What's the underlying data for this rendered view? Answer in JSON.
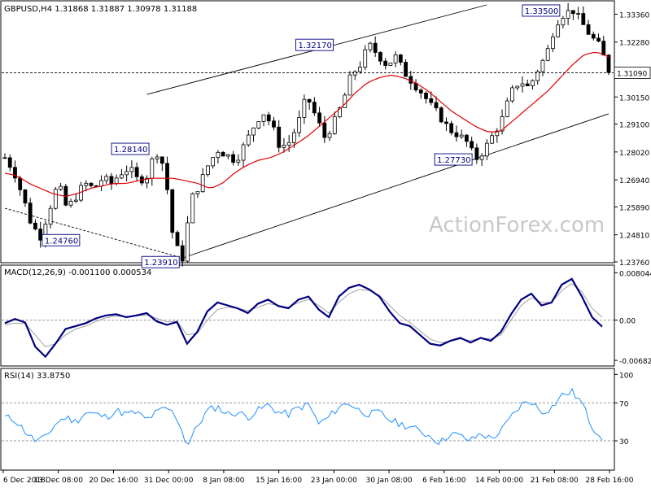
{
  "chart_data": [
    {
      "type": "candlestick",
      "title": "GBPUSD,H4  1.31868 1.31887 1.30978 1.31188",
      "timeframe": "H4",
      "symbol": "GBPUSD",
      "last_price_label": "1.31090",
      "ylim": [
        1.2376,
        1.3372
      ],
      "y_ticks": [
        "1.33360",
        "1.32280",
        "1.31090",
        "1.30150",
        "1.29100",
        "1.28020",
        "1.26940",
        "1.25890",
        "1.24810",
        "1.23760"
      ],
      "x_ticks": [
        "6 Dec 2018",
        "13 Dec 08:00",
        "20 Dec 16:00",
        "31 Dec 00:00",
        "8 Jan 08:00",
        "15 Jan 16:00",
        "23 Jan 00:00",
        "30 Jan 08:00",
        "6 Feb 16:00",
        "14 Feb 00:00",
        "21 Feb 08:00",
        "28 Feb 16:00"
      ],
      "annotations": [
        {
          "text": "1.24760",
          "value": 1.2476
        },
        {
          "text": "1.28140",
          "value": 1.2814
        },
        {
          "text": "1.23910",
          "value": 1.2391
        },
        {
          "text": "1.32170",
          "value": 1.3217
        },
        {
          "text": "1.27730",
          "value": 1.2773
        },
        {
          "text": "1.33500",
          "value": 1.335
        }
      ],
      "series": [
        {
          "name": "GBPUSD",
          "price_path": [
            1.278,
            1.273,
            1.263,
            1.252,
            1.2476,
            1.258,
            1.268,
            1.258,
            1.263,
            1.268,
            1.266,
            1.27,
            1.268,
            1.272,
            1.274,
            1.269,
            1.271,
            1.281,
            1.274,
            1.245,
            1.2391,
            1.262,
            1.268,
            1.276,
            1.281,
            1.279,
            1.277,
            1.283,
            1.29,
            1.296,
            1.291,
            1.282,
            1.284,
            1.291,
            1.302,
            1.294,
            1.286,
            1.291,
            1.299,
            1.31,
            1.314,
            1.3217,
            1.318,
            1.314,
            1.317,
            1.311,
            1.307,
            1.303,
            1.298,
            1.294,
            1.289,
            1.287,
            1.284,
            1.2773,
            1.281,
            1.287,
            1.293,
            1.303,
            1.308,
            1.305,
            1.312,
            1.318,
            1.33,
            1.334,
            1.335,
            1.33,
            1.325,
            1.321,
            1.3119
          ]
        },
        {
          "name": "MA",
          "ma_path": [
            1.272,
            1.271,
            1.268,
            1.266,
            1.264,
            1.263,
            1.264,
            1.266,
            1.267,
            1.268,
            1.268,
            1.269,
            1.27,
            1.27,
            1.27,
            1.269,
            1.268,
            1.266,
            1.268,
            1.272,
            1.275,
            1.277,
            1.278,
            1.28,
            1.283,
            1.286,
            1.29,
            1.294,
            1.298,
            1.303,
            1.307,
            1.309,
            1.31,
            1.309,
            1.307,
            1.304,
            1.3,
            1.296,
            1.293,
            1.29,
            1.288,
            1.288,
            1.292,
            1.296,
            1.3,
            1.304,
            1.309,
            1.314,
            1.318,
            1.319,
            1.317
          ]
        }
      ]
    },
    {
      "type": "line",
      "title": "MACD(12,26,9) -0.001100 0.000534",
      "ylim": [
        -0.0075,
        0.0085
      ],
      "y_ticks": [
        "0.008044",
        "0.00",
        "-0.006821"
      ],
      "series": [
        {
          "name": "MACD",
          "values": [
            -0.0005,
            0.0002,
            -0.0004,
            -0.0045,
            -0.0062,
            -0.004,
            -0.0015,
            -0.001,
            -0.0005,
            0.0003,
            0.0008,
            0.001,
            0.0005,
            0.0008,
            0.0012,
            -0.0002,
            -0.0008,
            -0.0003,
            -0.004,
            -0.002,
            0.0015,
            0.003,
            0.0025,
            0.002,
            0.0012,
            0.0028,
            0.0035,
            0.0024,
            0.002,
            0.0035,
            0.004,
            0.0018,
            0.0005,
            0.004,
            0.0055,
            0.006,
            0.0052,
            0.004,
            0.0015,
            -0.0005,
            -0.001,
            -0.0025,
            -0.004,
            -0.0043,
            -0.0035,
            -0.003,
            -0.0038,
            -0.003,
            -0.0035,
            -0.002,
            0.001,
            0.0035,
            0.0045,
            0.0025,
            0.003,
            0.006,
            0.007,
            0.004,
            0.0005,
            -0.0011
          ]
        },
        {
          "name": "Signal",
          "values": [
            -0.0008,
            -0.0005,
            -0.0006,
            -0.0025,
            -0.0045,
            -0.004,
            -0.0025,
            -0.0015,
            -0.001,
            -0.0002,
            0.0004,
            0.0007,
            0.0006,
            0.0007,
            0.0009,
            0.0003,
            -0.0003,
            -0.0002,
            -0.0025,
            -0.0022,
            0.0,
            0.0018,
            0.0022,
            0.002,
            0.0016,
            0.0022,
            0.0028,
            0.0025,
            0.0022,
            0.003,
            0.0035,
            0.0025,
            0.0012,
            0.003,
            0.0045,
            0.0052,
            0.005,
            0.0042,
            0.0025,
            0.0008,
            -0.0004,
            -0.0018,
            -0.0032,
            -0.0038,
            -0.0036,
            -0.0032,
            -0.0035,
            -0.003,
            -0.0032,
            -0.0025,
            0.0,
            0.0025,
            0.0038,
            0.003,
            0.003,
            0.005,
            0.0062,
            0.0048,
            0.002,
            0.0005
          ]
        }
      ]
    },
    {
      "type": "line",
      "title": "RSI(14) 33.8750",
      "ylim": [
        0,
        100
      ],
      "y_ticks": [
        "100",
        "70",
        "30"
      ],
      "series": [
        {
          "name": "RSI",
          "values": [
            55,
            52,
            40,
            30,
            33,
            48,
            55,
            50,
            60,
            58,
            55,
            62,
            58,
            60,
            52,
            60,
            65,
            55,
            25,
            45,
            62,
            66,
            58,
            60,
            55,
            62,
            68,
            60,
            58,
            65,
            68,
            48,
            55,
            66,
            70,
            62,
            58,
            60,
            52,
            48,
            45,
            40,
            35,
            28,
            38,
            35,
            30,
            38,
            32,
            40,
            55,
            68,
            72,
            60,
            65,
            78,
            82,
            70,
            45,
            34
          ]
        }
      ]
    }
  ],
  "watermark": "ActionForex.com"
}
